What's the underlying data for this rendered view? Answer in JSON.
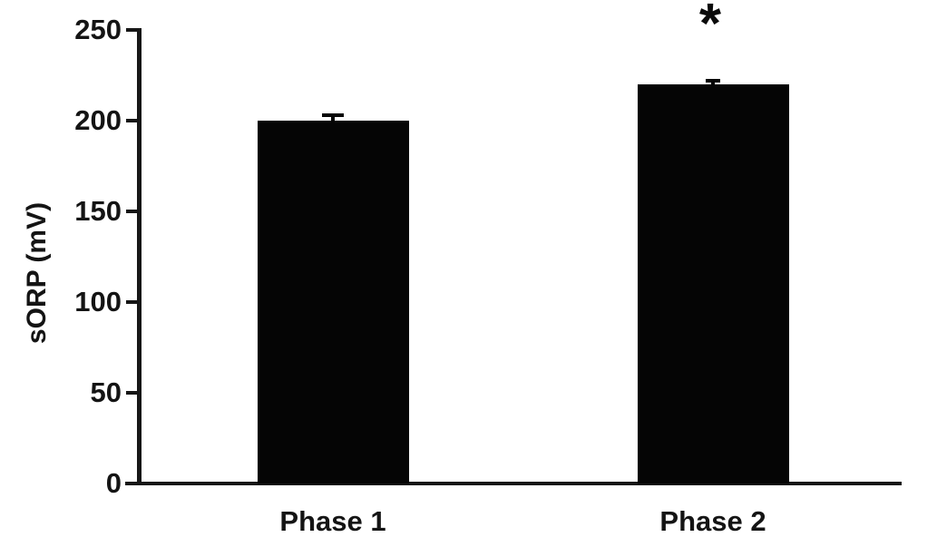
{
  "chart_data": {
    "type": "bar",
    "title": "",
    "xlabel": "",
    "ylabel": "sORP (mV)",
    "ylim": [
      0,
      250
    ],
    "yticks": [
      0,
      50,
      100,
      150,
      200,
      250
    ],
    "categories": [
      "Phase 1",
      "Phase 2"
    ],
    "values": [
      200,
      220
    ],
    "errors": [
      3,
      2
    ],
    "bar_color": "#050505",
    "axis_color": "#161616",
    "background_color": "#ffffff",
    "grid": false,
    "legend": false,
    "annotations": [
      {
        "text": "*",
        "target": "Phase 2",
        "meaning": "statistical-significance-marker"
      }
    ]
  }
}
